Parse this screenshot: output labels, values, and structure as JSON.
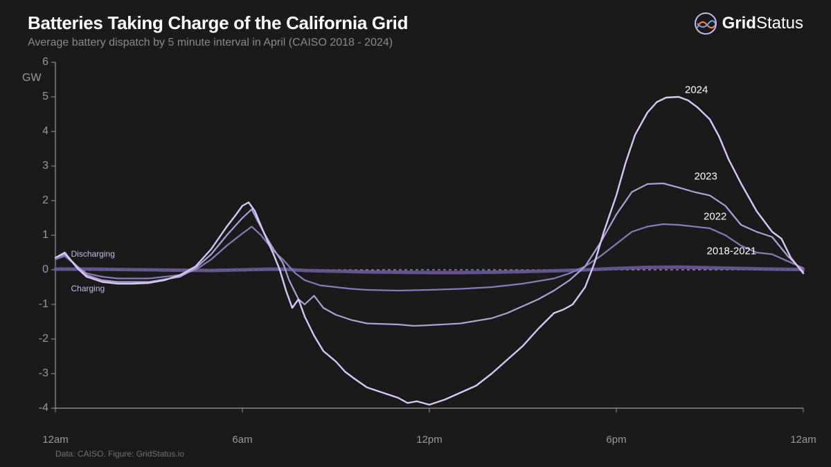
{
  "title": "Batteries Taking Charge of the California Grid",
  "subtitle": "Average battery dispatch by 5 minute interval in April (CAISO 2018 - 2024)",
  "logo": {
    "text1": "Grid",
    "text2": "Status"
  },
  "credit": "Data: CAISO. Figure: GridStatus.io",
  "chart": {
    "type": "line",
    "background_color": "#1a1a1a",
    "axis_color": "#9a9a9a",
    "grid_color": "#3a3a3a",
    "y_unit": "GW",
    "ylim": [
      -4,
      6
    ],
    "ytick_step": 1,
    "yticks": [
      6,
      5,
      4,
      3,
      2,
      1,
      0,
      -1,
      -2,
      -3,
      -4
    ],
    "xlim_hours": [
      0,
      24
    ],
    "xticks": [
      {
        "h": 0,
        "label": "12am"
      },
      {
        "h": 6,
        "label": "6am"
      },
      {
        "h": 12,
        "label": "12pm"
      },
      {
        "h": 18,
        "label": "6pm"
      },
      {
        "h": 24,
        "label": "12am"
      }
    ],
    "zero_line_dash": "4,4",
    "zero_line_color": "#c8b8e8",
    "inline_labels": {
      "discharging": {
        "text": "Discharging",
        "x_h": 0.5,
        "y_gw": 0.45
      },
      "charging": {
        "text": "Charging",
        "x_h": 0.5,
        "y_gw": -0.55
      }
    },
    "series_label_positions": {
      "s2024": {
        "text": "2024",
        "x_h": 20.2,
        "y_gw": 5.2
      },
      "s2023": {
        "text": "2023",
        "x_h": 20.5,
        "y_gw": 2.7
      },
      "s2022": {
        "text": "2022",
        "x_h": 20.8,
        "y_gw": 1.55
      },
      "s2018_2021": {
        "text": "2018-2021",
        "x_h": 20.9,
        "y_gw": 0.55
      }
    },
    "series": [
      {
        "id": "s2018_2021",
        "color": "#6a5a9a",
        "width": 5,
        "opacity": 0.9,
        "points": [
          [
            0,
            0.02
          ],
          [
            1,
            0.02
          ],
          [
            2,
            0.01
          ],
          [
            3,
            0.0
          ],
          [
            4,
            -0.01
          ],
          [
            5,
            -0.02
          ],
          [
            6,
            0.0
          ],
          [
            7,
            0.02
          ],
          [
            7.5,
            0.01
          ],
          [
            8,
            -0.02
          ],
          [
            9,
            -0.04
          ],
          [
            10,
            -0.06
          ],
          [
            11,
            -0.07
          ],
          [
            12,
            -0.08
          ],
          [
            13,
            -0.08
          ],
          [
            14,
            -0.07
          ],
          [
            15,
            -0.05
          ],
          [
            16,
            -0.03
          ],
          [
            17,
            0.0
          ],
          [
            18,
            0.04
          ],
          [
            19,
            0.07
          ],
          [
            20,
            0.08
          ],
          [
            21,
            0.06
          ],
          [
            22,
            0.04
          ],
          [
            23,
            0.02
          ],
          [
            24,
            0.01
          ]
        ]
      },
      {
        "id": "s2022",
        "color": "#8a7aba",
        "width": 2.2,
        "opacity": 1,
        "points": [
          [
            0,
            0.3
          ],
          [
            0.3,
            0.4
          ],
          [
            0.7,
            0.1
          ],
          [
            1,
            -0.1
          ],
          [
            1.5,
            -0.2
          ],
          [
            2,
            -0.25
          ],
          [
            3,
            -0.25
          ],
          [
            4,
            -0.15
          ],
          [
            4.5,
            0.0
          ],
          [
            5,
            0.3
          ],
          [
            5.5,
            0.7
          ],
          [
            6,
            1.05
          ],
          [
            6.3,
            1.25
          ],
          [
            6.6,
            1.0
          ],
          [
            7,
            0.55
          ],
          [
            7.3,
            0.3
          ],
          [
            7.7,
            -0.1
          ],
          [
            8,
            -0.3
          ],
          [
            8.5,
            -0.45
          ],
          [
            9,
            -0.5
          ],
          [
            9.5,
            -0.55
          ],
          [
            10,
            -0.58
          ],
          [
            11,
            -0.6
          ],
          [
            12,
            -0.58
          ],
          [
            13,
            -0.55
          ],
          [
            14,
            -0.5
          ],
          [
            15,
            -0.4
          ],
          [
            16,
            -0.25
          ],
          [
            16.5,
            -0.1
          ],
          [
            17,
            0.1
          ],
          [
            17.5,
            0.4
          ],
          [
            18,
            0.75
          ],
          [
            18.5,
            1.1
          ],
          [
            19,
            1.25
          ],
          [
            19.5,
            1.32
          ],
          [
            20,
            1.3
          ],
          [
            21,
            1.2
          ],
          [
            21.5,
            1.0
          ],
          [
            22,
            0.7
          ],
          [
            22.5,
            0.5
          ],
          [
            23,
            0.45
          ],
          [
            23.5,
            0.25
          ],
          [
            24,
            0.05
          ]
        ]
      },
      {
        "id": "s2023",
        "color": "#b0a0d8",
        "width": 2.2,
        "opacity": 1,
        "points": [
          [
            0,
            0.35
          ],
          [
            0.3,
            0.45
          ],
          [
            0.7,
            0.1
          ],
          [
            1,
            -0.15
          ],
          [
            1.5,
            -0.3
          ],
          [
            2,
            -0.35
          ],
          [
            3,
            -0.35
          ],
          [
            4,
            -0.2
          ],
          [
            4.5,
            0.05
          ],
          [
            5,
            0.45
          ],
          [
            5.5,
            1.0
          ],
          [
            6,
            1.5
          ],
          [
            6.3,
            1.75
          ],
          [
            6.5,
            1.4
          ],
          [
            6.8,
            0.9
          ],
          [
            7,
            0.6
          ],
          [
            7.3,
            0.2
          ],
          [
            7.5,
            -0.3
          ],
          [
            7.8,
            -0.85
          ],
          [
            8,
            -1.0
          ],
          [
            8.3,
            -0.75
          ],
          [
            8.6,
            -1.1
          ],
          [
            9,
            -1.3
          ],
          [
            9.5,
            -1.45
          ],
          [
            10,
            -1.55
          ],
          [
            11,
            -1.58
          ],
          [
            11.5,
            -1.62
          ],
          [
            12,
            -1.6
          ],
          [
            13,
            -1.55
          ],
          [
            14,
            -1.4
          ],
          [
            14.5,
            -1.25
          ],
          [
            15,
            -1.05
          ],
          [
            15.5,
            -0.85
          ],
          [
            16,
            -0.6
          ],
          [
            16.5,
            -0.3
          ],
          [
            17,
            0.1
          ],
          [
            17.5,
            0.8
          ],
          [
            18,
            1.6
          ],
          [
            18.5,
            2.25
          ],
          [
            19,
            2.48
          ],
          [
            19.5,
            2.5
          ],
          [
            20,
            2.38
          ],
          [
            20.5,
            2.25
          ],
          [
            21,
            2.15
          ],
          [
            21.5,
            1.85
          ],
          [
            22,
            1.3
          ],
          [
            22.5,
            1.1
          ],
          [
            23,
            0.95
          ],
          [
            23.5,
            0.4
          ],
          [
            24,
            -0.05
          ]
        ]
      },
      {
        "id": "s2024",
        "color": "#d8c8f8",
        "width": 2.4,
        "opacity": 1,
        "points": [
          [
            0,
            0.35
          ],
          [
            0.3,
            0.5
          ],
          [
            0.7,
            0.05
          ],
          [
            1,
            -0.2
          ],
          [
            1.5,
            -0.35
          ],
          [
            2,
            -0.4
          ],
          [
            2.5,
            -0.4
          ],
          [
            3,
            -0.38
          ],
          [
            3.5,
            -0.3
          ],
          [
            4,
            -0.15
          ],
          [
            4.5,
            0.1
          ],
          [
            5,
            0.6
          ],
          [
            5.5,
            1.25
          ],
          [
            5.8,
            1.6
          ],
          [
            6,
            1.85
          ],
          [
            6.2,
            1.95
          ],
          [
            6.4,
            1.7
          ],
          [
            6.7,
            1.05
          ],
          [
            7,
            0.45
          ],
          [
            7.2,
            0.0
          ],
          [
            7.4,
            -0.6
          ],
          [
            7.6,
            -1.1
          ],
          [
            7.8,
            -0.85
          ],
          [
            8,
            -1.35
          ],
          [
            8.3,
            -1.9
          ],
          [
            8.6,
            -2.35
          ],
          [
            9,
            -2.65
          ],
          [
            9.3,
            -2.95
          ],
          [
            9.6,
            -3.15
          ],
          [
            10,
            -3.4
          ],
          [
            10.5,
            -3.55
          ],
          [
            11,
            -3.7
          ],
          [
            11.3,
            -3.85
          ],
          [
            11.6,
            -3.8
          ],
          [
            12,
            -3.9
          ],
          [
            12.5,
            -3.75
          ],
          [
            13,
            -3.55
          ],
          [
            13.5,
            -3.35
          ],
          [
            14,
            -3.0
          ],
          [
            14.5,
            -2.6
          ],
          [
            15,
            -2.2
          ],
          [
            15.5,
            -1.7
          ],
          [
            16,
            -1.25
          ],
          [
            16.3,
            -1.15
          ],
          [
            16.6,
            -1.0
          ],
          [
            17,
            -0.5
          ],
          [
            17.3,
            0.2
          ],
          [
            17.6,
            1.1
          ],
          [
            18,
            2.15
          ],
          [
            18.3,
            3.1
          ],
          [
            18.6,
            3.9
          ],
          [
            19,
            4.55
          ],
          [
            19.3,
            4.85
          ],
          [
            19.6,
            4.98
          ],
          [
            20,
            5.0
          ],
          [
            20.3,
            4.9
          ],
          [
            20.6,
            4.7
          ],
          [
            21,
            4.35
          ],
          [
            21.3,
            3.85
          ],
          [
            21.6,
            3.2
          ],
          [
            22,
            2.5
          ],
          [
            22.5,
            1.7
          ],
          [
            23,
            1.1
          ],
          [
            23.3,
            0.9
          ],
          [
            23.6,
            0.35
          ],
          [
            24,
            -0.1
          ]
        ]
      }
    ]
  }
}
